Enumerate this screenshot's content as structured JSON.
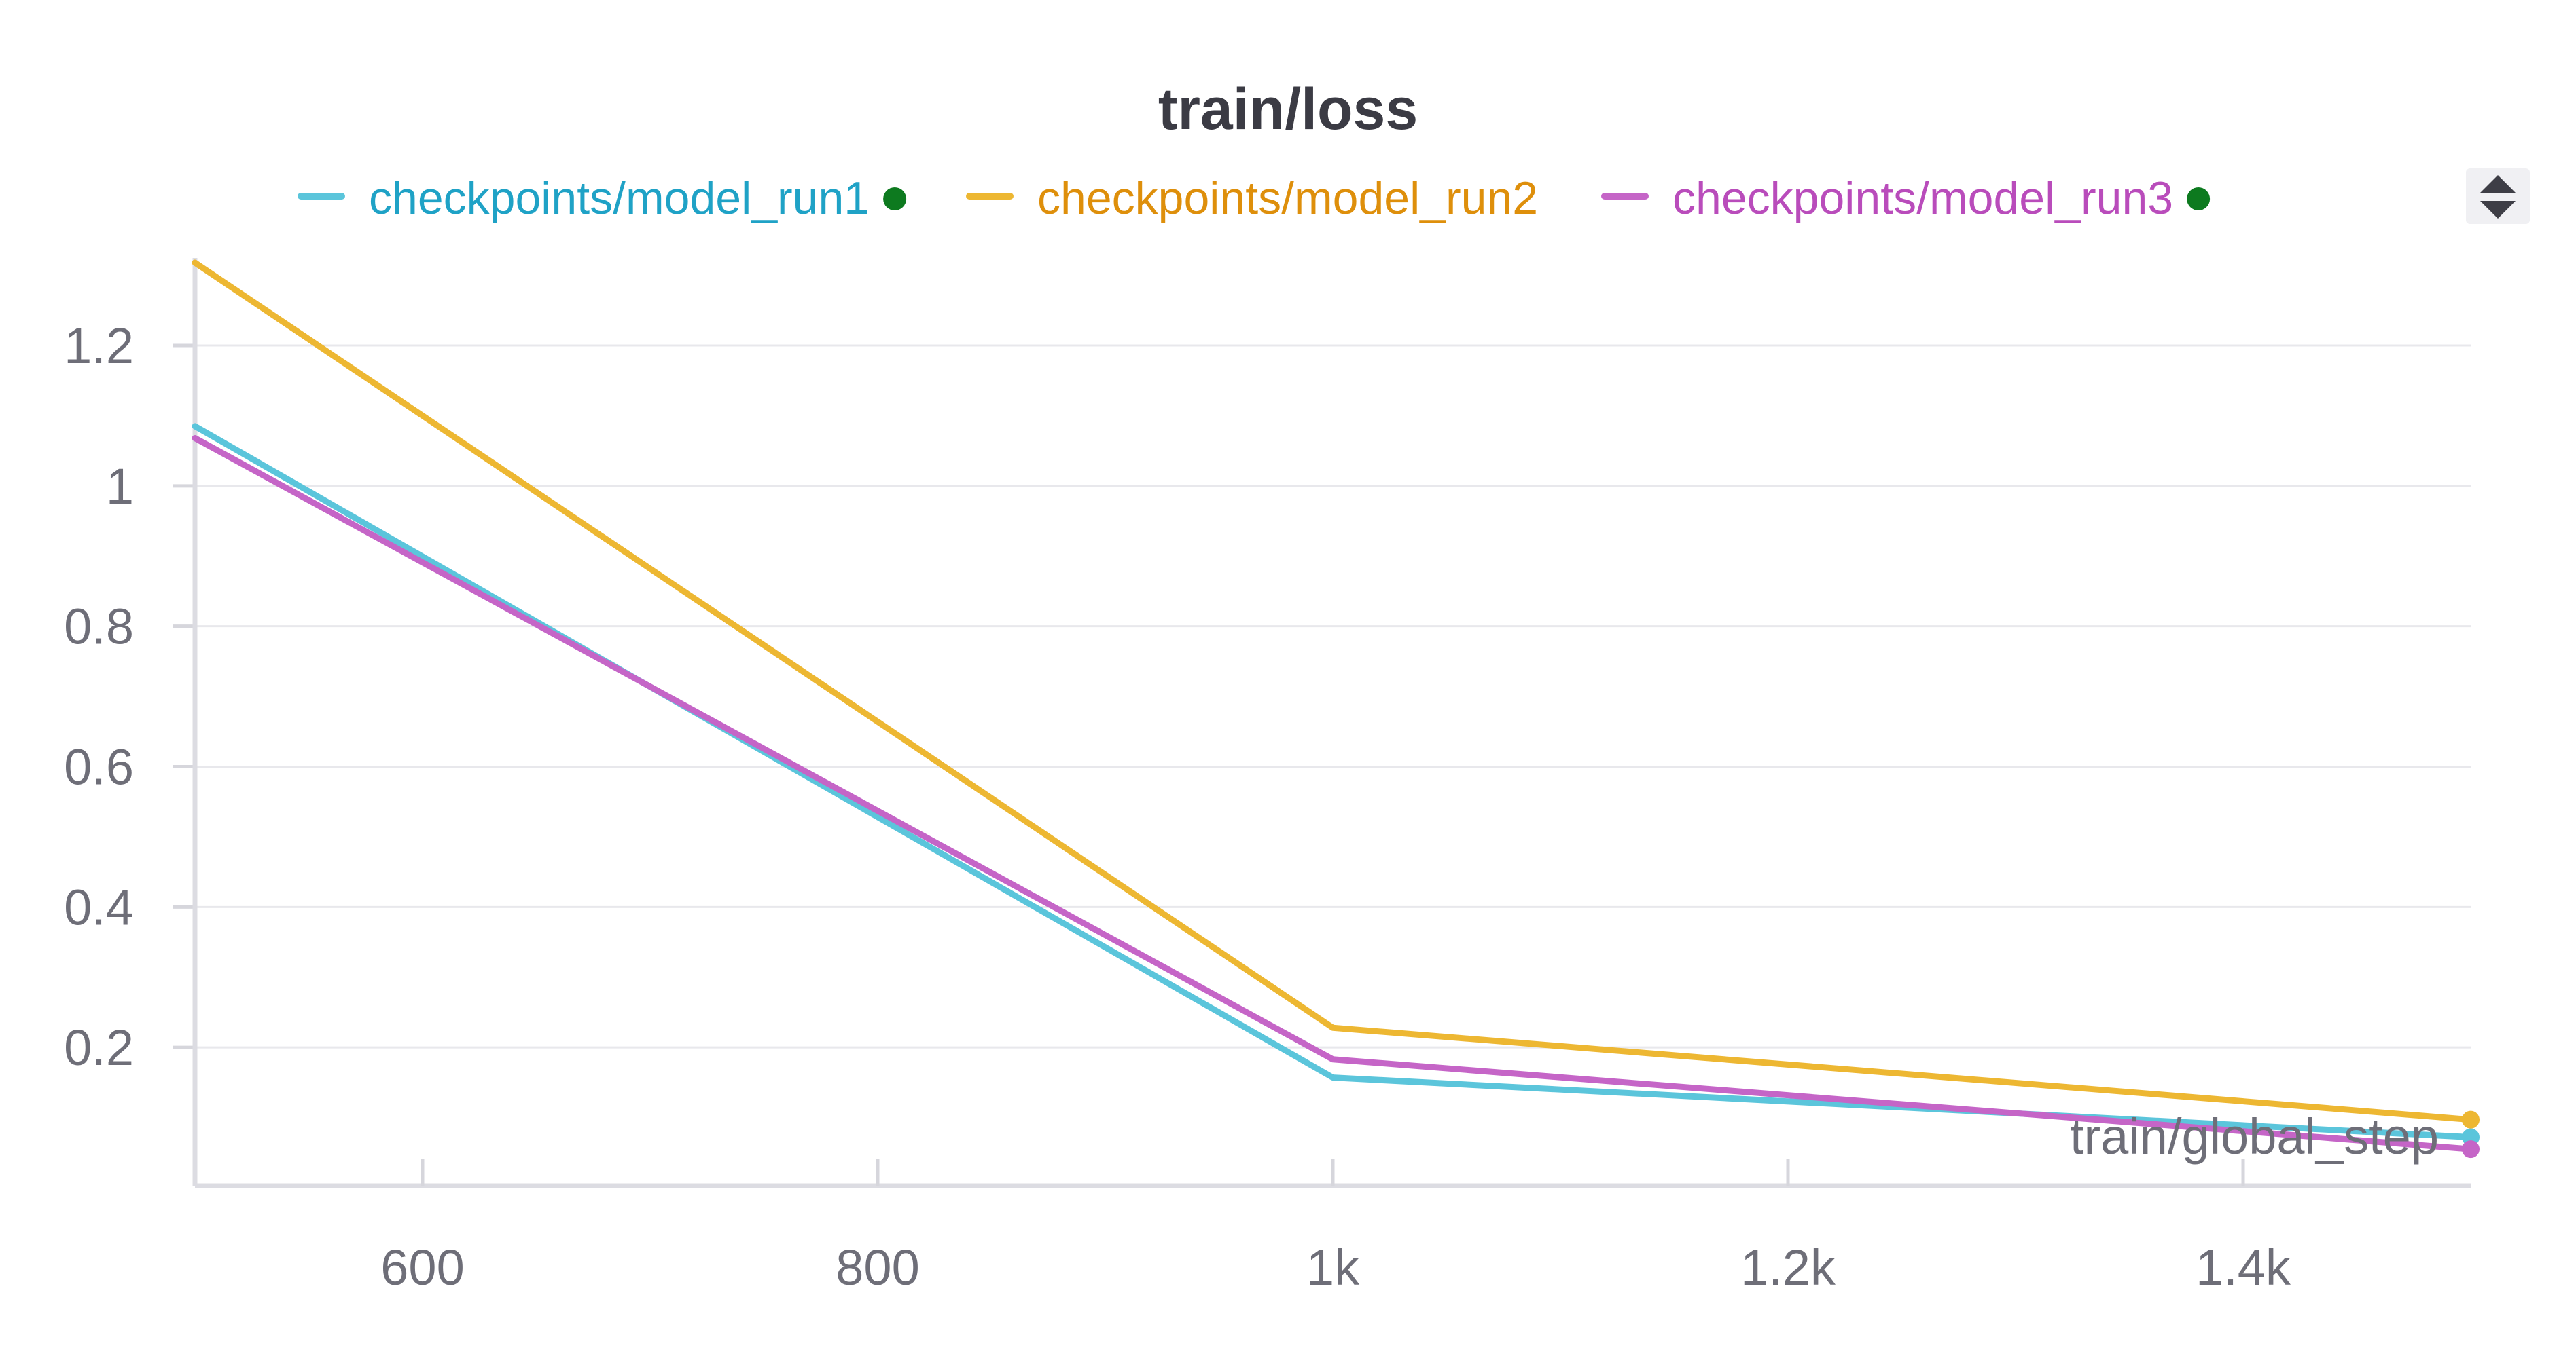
{
  "chart_data": {
    "type": "line",
    "title": "train/loss",
    "xlabel": "train/global_step",
    "ylabel": "",
    "xlim": [
      500,
      1500
    ],
    "ylim": [
      0.05,
      1.32
    ],
    "x_ticks": [
      {
        "value": 600,
        "label": "600"
      },
      {
        "value": 800,
        "label": "800"
      },
      {
        "value": 1000,
        "label": "1k"
      },
      {
        "value": 1200,
        "label": "1.2k"
      },
      {
        "value": 1400,
        "label": "1.4k"
      }
    ],
    "y_ticks": [
      {
        "value": 0.2,
        "label": "0.2"
      },
      {
        "value": 0.4,
        "label": "0.4"
      },
      {
        "value": 0.6,
        "label": "0.6"
      },
      {
        "value": 0.8,
        "label": "0.8"
      },
      {
        "value": 1.0,
        "label": "1"
      },
      {
        "value": 1.2,
        "label": "1.2"
      }
    ],
    "grid": "horizontal",
    "legend_position": "top",
    "series": [
      {
        "name": "checkpoints/model_run1",
        "color": "#5bc5db",
        "text_color": "#1fa2c6",
        "active_dot": true,
        "points": [
          [
            500,
            1.085
          ],
          [
            1000,
            0.157
          ],
          [
            1500,
            0.072
          ]
        ]
      },
      {
        "name": "checkpoints/model_run2",
        "color": "#edb732",
        "text_color": "#de8f0b",
        "active_dot": false,
        "points": [
          [
            500,
            1.318
          ],
          [
            1000,
            0.228
          ],
          [
            1500,
            0.097
          ]
        ]
      },
      {
        "name": "checkpoints/model_run3",
        "color": "#c565c7",
        "text_color": "#b94cbb",
        "active_dot": true,
        "points": [
          [
            500,
            1.068
          ],
          [
            1000,
            0.183
          ],
          [
            1500,
            0.055
          ]
        ]
      }
    ],
    "active_dot_color": "#0d7a1f"
  }
}
